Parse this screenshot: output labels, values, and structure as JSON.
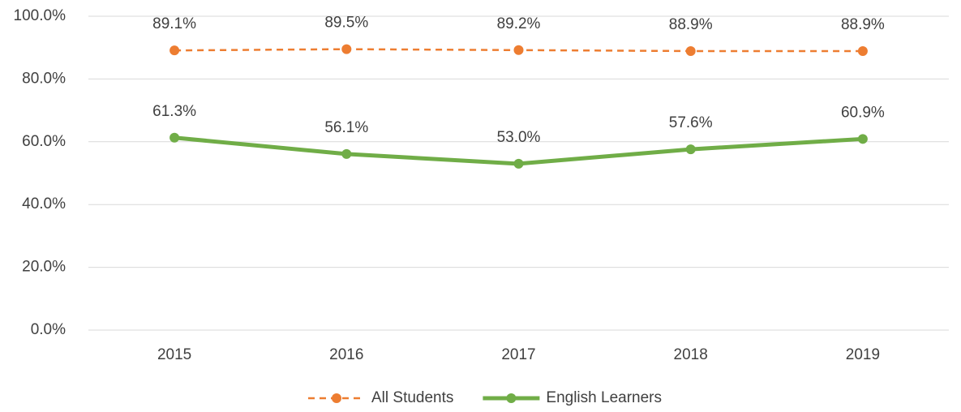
{
  "chart_data": {
    "type": "line",
    "categories": [
      "2015",
      "2016",
      "2017",
      "2018",
      "2019"
    ],
    "series": [
      {
        "name": "All Students",
        "color": "#ed7d31",
        "line_style": "dashed",
        "values": [
          89.1,
          89.5,
          89.2,
          88.9,
          88.9
        ],
        "value_labels": [
          "89.1%",
          "89.5%",
          "89.2%",
          "88.9%",
          "88.9%"
        ]
      },
      {
        "name": "English Learners",
        "color": "#70ad47",
        "line_style": "solid",
        "values": [
          61.3,
          56.1,
          53.0,
          57.6,
          60.9
        ],
        "value_labels": [
          "61.3%",
          "56.1%",
          "53.0%",
          "57.6%",
          "60.9%"
        ]
      }
    ],
    "ylim": [
      0,
      100
    ],
    "yticks": [
      {
        "value": 0,
        "label": "0.0%"
      },
      {
        "value": 20,
        "label": "20.0%"
      },
      {
        "value": 40,
        "label": "40.0%"
      },
      {
        "value": 60,
        "label": "60.0%"
      },
      {
        "value": 80,
        "label": "80.0%"
      },
      {
        "value": 100,
        "label": "100.0%"
      }
    ],
    "grid": true,
    "legend": "bottom"
  }
}
